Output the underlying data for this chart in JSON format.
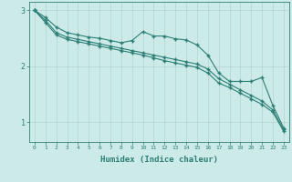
{
  "xlabel": "Humidex (Indice chaleur)",
  "background_color": "#cceae8",
  "grid_color": "#b0d5d2",
  "line_color": "#2d7f75",
  "x_ticks": [
    0,
    1,
    2,
    3,
    4,
    5,
    6,
    7,
    8,
    9,
    10,
    11,
    12,
    13,
    14,
    15,
    16,
    17,
    18,
    19,
    20,
    21,
    22,
    23
  ],
  "y_ticks": [
    1,
    2,
    3
  ],
  "ylim": [
    0.65,
    3.15
  ],
  "xlim": [
    -0.5,
    23.5
  ],
  "line1_x": [
    0,
    1,
    2,
    3,
    4,
    5,
    6,
    7,
    8,
    9,
    10,
    11,
    12,
    13,
    14,
    15,
    16,
    17,
    18,
    19,
    20,
    21,
    22,
    23
  ],
  "line1_y": [
    3.0,
    2.87,
    2.7,
    2.6,
    2.56,
    2.52,
    2.5,
    2.46,
    2.42,
    2.46,
    2.62,
    2.54,
    2.54,
    2.49,
    2.47,
    2.38,
    2.2,
    1.88,
    1.73,
    1.73,
    1.73,
    1.8,
    1.3,
    0.9
  ],
  "line2_x": [
    0,
    1,
    2,
    3,
    4,
    5,
    6,
    7,
    8,
    9,
    10,
    11,
    12,
    13,
    14,
    15,
    16,
    17,
    18,
    19,
    20,
    21,
    22,
    23
  ],
  "line2_y": [
    3.0,
    2.82,
    2.6,
    2.52,
    2.48,
    2.44,
    2.4,
    2.36,
    2.32,
    2.28,
    2.24,
    2.2,
    2.16,
    2.12,
    2.08,
    2.04,
    1.95,
    1.78,
    1.68,
    1.58,
    1.48,
    1.38,
    1.22,
    0.87
  ],
  "line3_x": [
    0,
    1,
    2,
    3,
    4,
    5,
    6,
    7,
    8,
    9,
    10,
    11,
    12,
    13,
    14,
    15,
    16,
    17,
    18,
    19,
    20,
    21,
    22,
    23
  ],
  "line3_y": [
    3.0,
    2.78,
    2.56,
    2.48,
    2.44,
    2.4,
    2.36,
    2.32,
    2.28,
    2.24,
    2.2,
    2.15,
    2.1,
    2.06,
    2.02,
    1.98,
    1.88,
    1.7,
    1.62,
    1.52,
    1.42,
    1.32,
    1.18,
    0.84
  ]
}
